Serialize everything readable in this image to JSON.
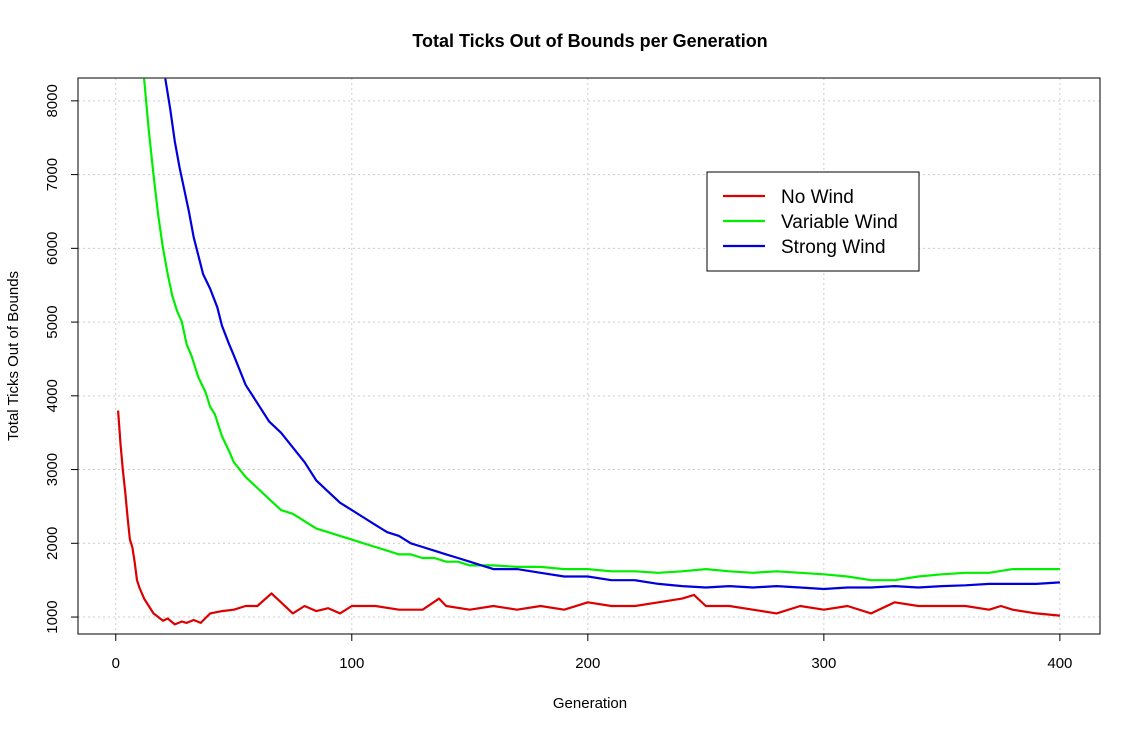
{
  "chart_data": {
    "type": "line",
    "title": "Total Ticks Out of Bounds per Generation",
    "xlabel": "Generation",
    "ylabel": "Total Ticks Out of Bounds",
    "xlim": [
      -16,
      417
    ],
    "ylim": [
      770,
      8310
    ],
    "x_ticks": [
      0,
      100,
      200,
      300,
      400
    ],
    "y_ticks": [
      1000,
      2000,
      3000,
      4000,
      5000,
      6000,
      7000,
      8000
    ],
    "grid": true,
    "legend_position": "top-right",
    "series": [
      {
        "name": "No Wind",
        "color": "#dd0000",
        "x": [
          1,
          2,
          3,
          4,
          5,
          6,
          7,
          8,
          9,
          10,
          12,
          14,
          16,
          18,
          20,
          22,
          25,
          28,
          30,
          33,
          36,
          40,
          45,
          50,
          55,
          60,
          66,
          70,
          75,
          80,
          85,
          90,
          95,
          100,
          110,
          120,
          130,
          137,
          140,
          150,
          160,
          170,
          180,
          190,
          200,
          210,
          220,
          230,
          240,
          245,
          250,
          260,
          270,
          280,
          290,
          300,
          310,
          320,
          330,
          340,
          350,
          360,
          370,
          375,
          380,
          390,
          400
        ],
        "y": [
          3800,
          3350,
          3000,
          2700,
          2350,
          2050,
          1950,
          1750,
          1500,
          1400,
          1250,
          1150,
          1050,
          1000,
          950,
          980,
          900,
          940,
          920,
          960,
          920,
          1050,
          1080,
          1100,
          1150,
          1150,
          1320,
          1200,
          1050,
          1150,
          1080,
          1120,
          1050,
          1150,
          1150,
          1100,
          1100,
          1250,
          1150,
          1100,
          1150,
          1100,
          1150,
          1100,
          1200,
          1150,
          1150,
          1200,
          1250,
          1300,
          1150,
          1150,
          1100,
          1050,
          1150,
          1100,
          1150,
          1050,
          1200,
          1150,
          1150,
          1150,
          1100,
          1150,
          1100,
          1050,
          1020
        ]
      },
      {
        "name": "Variable Wind",
        "color": "#00ee00",
        "x": [
          12,
          14,
          16,
          18,
          20,
          22,
          24,
          26,
          28,
          30,
          32,
          35,
          38,
          40,
          42,
          45,
          48,
          50,
          55,
          60,
          65,
          70,
          75,
          80,
          85,
          90,
          95,
          100,
          105,
          110,
          115,
          120,
          125,
          130,
          135,
          140,
          145,
          150,
          155,
          160,
          170,
          180,
          190,
          200,
          210,
          220,
          230,
          240,
          250,
          260,
          270,
          280,
          290,
          300,
          310,
          320,
          330,
          340,
          350,
          360,
          370,
          380,
          390,
          400
        ],
        "y": [
          8300,
          7600,
          7000,
          6450,
          6000,
          5650,
          5350,
          5150,
          5000,
          4700,
          4550,
          4250,
          4050,
          3850,
          3750,
          3450,
          3250,
          3100,
          2900,
          2750,
          2600,
          2450,
          2400,
          2300,
          2200,
          2150,
          2100,
          2050,
          2000,
          1950,
          1900,
          1850,
          1850,
          1800,
          1800,
          1750,
          1750,
          1700,
          1700,
          1700,
          1680,
          1680,
          1650,
          1650,
          1620,
          1620,
          1600,
          1620,
          1650,
          1620,
          1600,
          1620,
          1600,
          1580,
          1550,
          1500,
          1500,
          1550,
          1580,
          1600,
          1600,
          1650,
          1650,
          1650
        ]
      },
      {
        "name": "Strong Wind",
        "color": "#0000dd",
        "x": [
          21,
          23,
          25,
          27,
          29,
          31,
          33,
          35,
          37,
          40,
          43,
          45,
          48,
          50,
          55,
          60,
          65,
          70,
          75,
          80,
          85,
          90,
          95,
          100,
          105,
          110,
          115,
          120,
          125,
          130,
          135,
          140,
          145,
          150,
          155,
          160,
          170,
          180,
          190,
          200,
          210,
          220,
          230,
          240,
          250,
          260,
          270,
          280,
          290,
          300,
          310,
          320,
          330,
          340,
          350,
          360,
          370,
          380,
          390,
          400
        ],
        "y": [
          8300,
          7900,
          7450,
          7100,
          6800,
          6500,
          6150,
          5900,
          5650,
          5450,
          5200,
          4950,
          4700,
          4550,
          4150,
          3900,
          3650,
          3500,
          3300,
          3100,
          2850,
          2700,
          2550,
          2450,
          2350,
          2250,
          2150,
          2100,
          2000,
          1950,
          1900,
          1850,
          1800,
          1750,
          1700,
          1650,
          1650,
          1600,
          1550,
          1550,
          1500,
          1500,
          1450,
          1420,
          1400,
          1420,
          1400,
          1420,
          1400,
          1380,
          1400,
          1400,
          1420,
          1400,
          1420,
          1430,
          1450,
          1450,
          1450,
          1470
        ]
      }
    ]
  }
}
